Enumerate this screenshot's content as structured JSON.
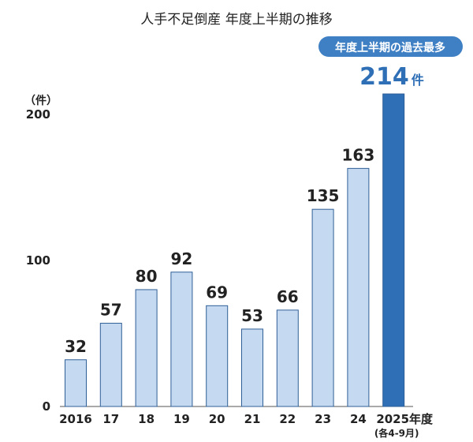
{
  "chart_data": {
    "type": "bar",
    "title": "人手不足倒産 年度上半期の推移",
    "ylabel": "（件）",
    "ylim": [
      0,
      214
    ],
    "yticks": [
      0,
      100,
      200
    ],
    "categories": [
      "2016",
      "17",
      "18",
      "19",
      "20",
      "21",
      "22",
      "23",
      "24",
      "2025年度"
    ],
    "category_note": "(各4-9月)",
    "values": [
      32,
      57,
      80,
      92,
      69,
      53,
      66,
      135,
      163,
      214
    ],
    "highlight": {
      "index": 9,
      "badge": "年度上半期の過去最多",
      "value_text": "214",
      "unit_text": "件"
    },
    "colors": {
      "bar": "#c5d9f0",
      "bar_border": "#2f5f97",
      "highlight_bar": "#2e6fb6",
      "highlight_text": "#2e6fb6",
      "badge": "#3f7fc4"
    }
  }
}
